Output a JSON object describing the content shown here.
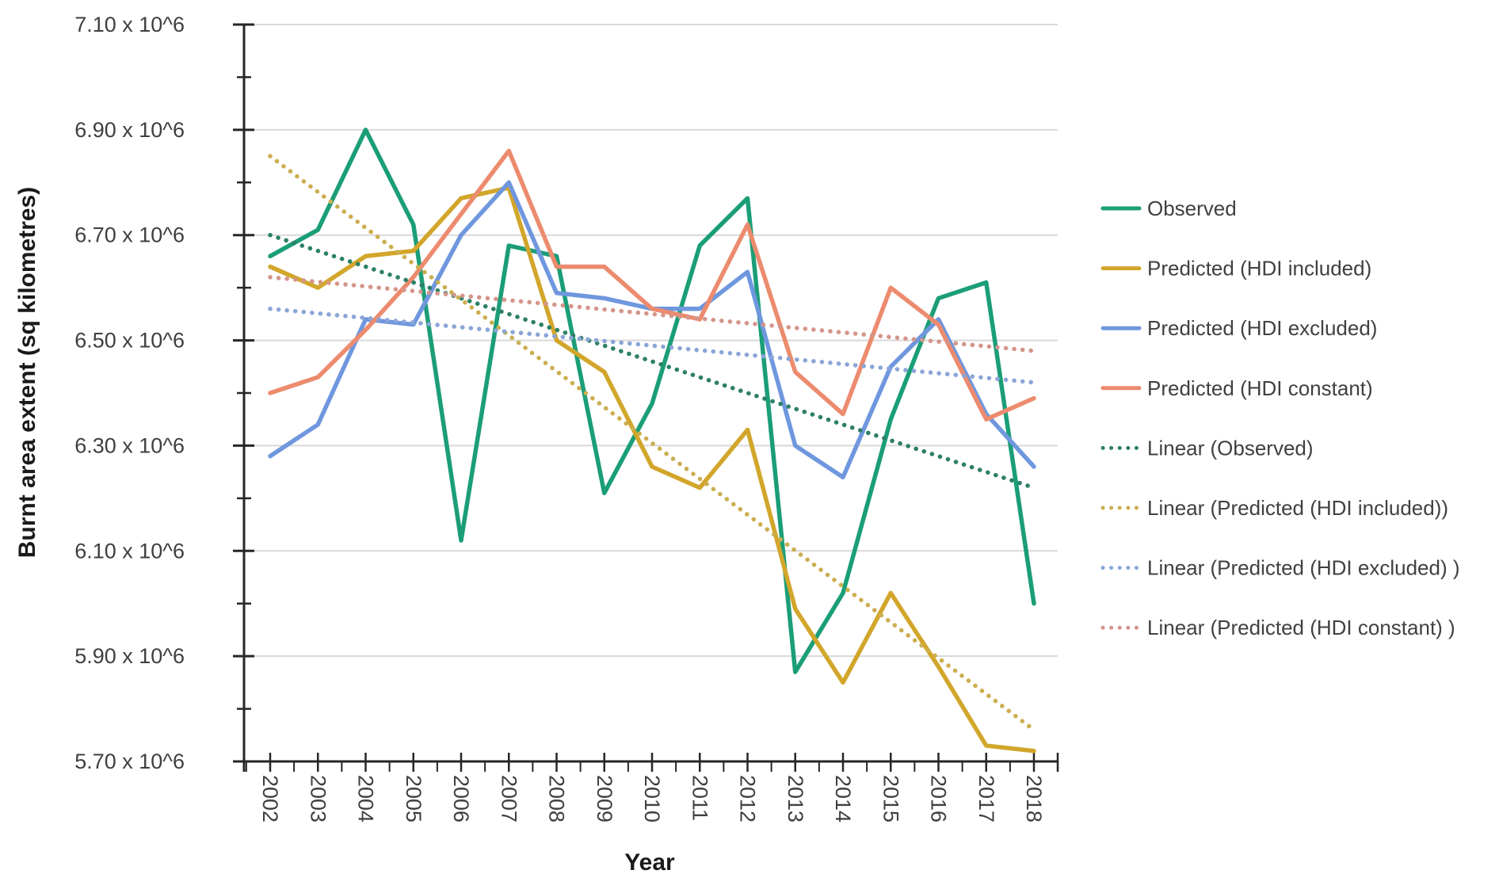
{
  "chart_data": {
    "type": "line",
    "title": "",
    "xlabel": "Year",
    "ylabel": "Burnt area extent (sq kilometres)",
    "x": [
      2002,
      2003,
      2004,
      2005,
      2006,
      2007,
      2008,
      2009,
      2010,
      2011,
      2012,
      2013,
      2014,
      2015,
      2016,
      2017,
      2018
    ],
    "x_tick_labels": [
      "2002",
      "2003",
      "2004",
      "2005",
      "2006",
      "2007",
      "2008",
      "2009",
      "2010",
      "2011",
      "2012",
      "2013",
      "2014",
      "2015",
      "2016",
      "2017",
      "2018"
    ],
    "y_tick_labels": [
      "7.10 x 10^6",
      "6.90 x 10^6",
      "6.70 x 10^6",
      "6.50 x 10^6",
      "6.30 x 10^6",
      "6.10 x 10^6",
      "5.90 x 10^6",
      "5.70 x 10^6"
    ],
    "y_tick_values_millions": [
      7.1,
      6.9,
      6.7,
      6.5,
      6.3,
      6.1,
      5.9,
      5.7
    ],
    "ylim_millions": [
      5.7,
      7.1
    ],
    "y_unit_multiplier": "10^6",
    "grid": true,
    "legend_position": "right",
    "series": [
      {
        "name": "Observed",
        "style": "solid",
        "color": "#1b9e77",
        "values_millions": [
          6.66,
          6.71,
          6.9,
          6.72,
          6.12,
          6.68,
          6.66,
          6.21,
          6.38,
          6.68,
          6.77,
          5.87,
          6.02,
          6.35,
          6.58,
          6.61,
          6.0
        ]
      },
      {
        "name": "Predicted (HDI included)",
        "style": "solid",
        "color": "#d2a62b",
        "values_millions": [
          6.64,
          6.6,
          6.66,
          6.67,
          6.77,
          6.79,
          6.5,
          6.44,
          6.26,
          6.22,
          6.33,
          5.99,
          5.85,
          6.02,
          5.88,
          5.73,
          5.72
        ]
      },
      {
        "name": "Predicted (HDI excluded)",
        "style": "solid",
        "color": "#6f97de",
        "values_millions": [
          6.28,
          6.34,
          6.54,
          6.53,
          6.7,
          6.8,
          6.59,
          6.58,
          6.56,
          6.56,
          6.63,
          6.3,
          6.24,
          6.45,
          6.54,
          6.36,
          6.26
        ]
      },
      {
        "name": "Predicted (HDI constant)",
        "style": "solid",
        "color": "#ec8b6e",
        "values_millions": [
          6.4,
          6.43,
          6.52,
          6.62,
          6.74,
          6.86,
          6.64,
          6.64,
          6.56,
          6.54,
          6.72,
          6.44,
          6.36,
          6.6,
          6.53,
          6.35,
          6.39
        ]
      },
      {
        "name": "Linear (Observed)",
        "style": "dotted",
        "color": "#2c8066",
        "trend_endpoints_millions": [
          6.7,
          6.22
        ]
      },
      {
        "name": "Linear (Predicted (HDI included))",
        "style": "dotted",
        "color": "#ccae50",
        "trend_endpoints_millions": [
          6.85,
          5.76
        ]
      },
      {
        "name": "Linear (Predicted (HDI excluded) )",
        "style": "dotted",
        "color": "#8ba5d7",
        "trend_endpoints_millions": [
          6.56,
          6.42
        ]
      },
      {
        "name": "Linear (Predicted (HDI constant) )",
        "style": "dotted",
        "color": "#d4958b",
        "trend_endpoints_millions": [
          6.62,
          6.48
        ]
      }
    ],
    "colors": {
      "axis": "#262626",
      "gridline": "#d9d9d9",
      "tick_label": "#3f3f3f",
      "axis_title": "#1a1a1a",
      "legend_text": "#404040",
      "background": "#ffffff"
    }
  }
}
